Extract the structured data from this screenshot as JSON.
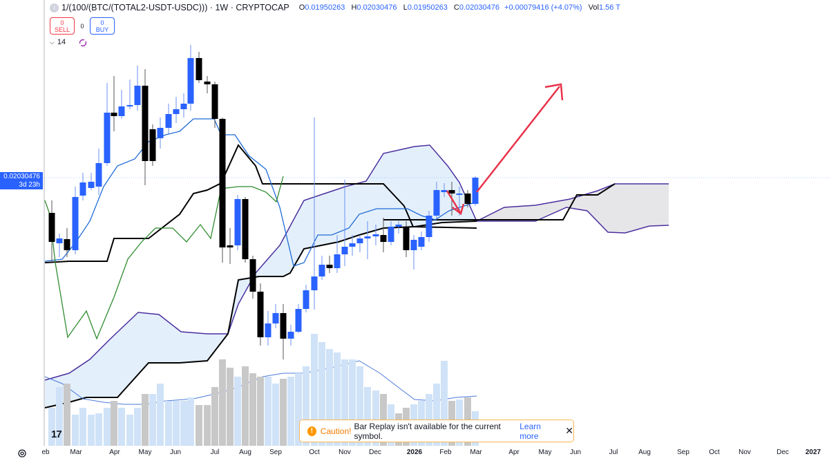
{
  "header": {
    "symbol": "1/(100/(BTC/(TOTAL2-USDT-USDC)))",
    "interval": "1W",
    "exchange": "CRYPTOCAP",
    "ohlc": {
      "open_label": "O",
      "open": "0.01950263",
      "high_label": "H",
      "high": "0.02030476",
      "low_label": "L",
      "low": "0.01950263",
      "close_label": "C",
      "close": "0.02030476",
      "change": "+0.00079416 (+4.07%)",
      "vol_label": "Vol",
      "vol": "1.56 T"
    }
  },
  "trade": {
    "sell_count": "0",
    "sell_label": "SELL",
    "spread": "0",
    "buy_count": "0",
    "buy_label": "BUY"
  },
  "indicators_collapsed": {
    "count": "14"
  },
  "price_tag": {
    "value": "0.02030476",
    "countdown": "3d 23h"
  },
  "toast": {
    "caution": "Caution!",
    "message": "Bar Replay isn't available for the current symbol.",
    "link": "Learn more"
  },
  "logo": "17",
  "time_axis": [
    {
      "label": "eb",
      "bold": false
    },
    {
      "label": "Mar",
      "bold": false
    },
    {
      "label": "Apr",
      "bold": false
    },
    {
      "label": "May",
      "bold": false
    },
    {
      "label": "Jun",
      "bold": false
    },
    {
      "label": "Jul",
      "bold": false
    },
    {
      "label": "Aug",
      "bold": false
    },
    {
      "label": "Sep",
      "bold": false
    },
    {
      "label": "Oct",
      "bold": false
    },
    {
      "label": "Nov",
      "bold": false
    },
    {
      "label": "Dec",
      "bold": false
    },
    {
      "label": "2026",
      "bold": true
    },
    {
      "label": "Feb",
      "bold": false
    },
    {
      "label": "Mar",
      "bold": false
    },
    {
      "label": "Apr",
      "bold": false
    },
    {
      "label": "May",
      "bold": false
    },
    {
      "label": "Jun",
      "bold": false
    },
    {
      "label": "Jul",
      "bold": false
    },
    {
      "label": "Aug",
      "bold": false
    },
    {
      "label": "Sep",
      "bold": false
    },
    {
      "label": "Oct",
      "bold": false
    },
    {
      "label": "Nov",
      "bold": false
    },
    {
      "label": "Dec",
      "bold": false
    },
    {
      "label": "2027",
      "bold": true
    }
  ],
  "colors": {
    "up": "#2962ff",
    "down": "#000000",
    "kumo_fill": "#e3effb",
    "kumo_future_fill": "#e6e6e9",
    "span_line": "#4a2e9e",
    "tenkan": "#1e6bd6",
    "kijun": "#000000",
    "chikou": "#2e8b2e",
    "arrow": "#e8334a",
    "volume_up": "#cfe2f7",
    "volume_down": "#c8c8c8"
  }
}
